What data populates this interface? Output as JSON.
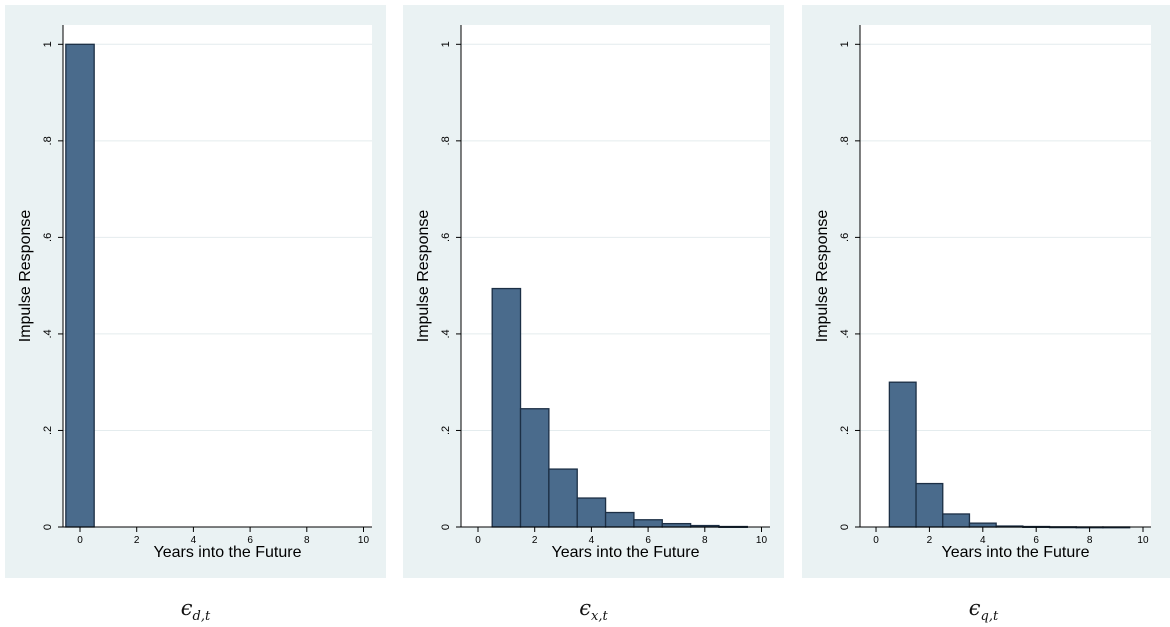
{
  "chart_data": [
    {
      "type": "bar",
      "ylabel": "Impulse Response",
      "xlabel": "Years into the Future",
      "xlim": [
        -0.6,
        10.3
      ],
      "ylim": [
        0,
        1.04
      ],
      "xticks": [
        0,
        2,
        4,
        6,
        8,
        10
      ],
      "yticks": [
        0,
        0.2,
        0.4,
        0.6,
        0.8,
        1
      ],
      "ytick_labels": [
        "0",
        ".2",
        ".4",
        ".6",
        ".8",
        "1"
      ],
      "grid": true,
      "x": [
        0,
        1,
        2,
        3,
        4,
        5,
        6,
        7,
        8,
        9
      ],
      "values": [
        1.0,
        0,
        0,
        0,
        0,
        0,
        0,
        0,
        0,
        0
      ],
      "caption_base": "ϵ",
      "caption_sub": "d,t"
    },
    {
      "type": "bar",
      "ylabel": "Impulse Response",
      "xlabel": "Years into the Future",
      "xlim": [
        -0.6,
        10.3
      ],
      "ylim": [
        0,
        1.04
      ],
      "xticks": [
        0,
        2,
        4,
        6,
        8,
        10
      ],
      "yticks": [
        0,
        0.2,
        0.4,
        0.6,
        0.8,
        1
      ],
      "ytick_labels": [
        "0",
        ".2",
        ".4",
        ".6",
        ".8",
        "1"
      ],
      "grid": true,
      "x": [
        0,
        1,
        2,
        3,
        4,
        5,
        6,
        7,
        8,
        9
      ],
      "values": [
        0,
        0.494,
        0.245,
        0.12,
        0.06,
        0.03,
        0.015,
        0.007,
        0.003,
        0.001
      ],
      "caption_base": "ϵ",
      "caption_sub": "x,t"
    },
    {
      "type": "bar",
      "ylabel": "Impulse Response",
      "xlabel": "Years into the Future",
      "xlim": [
        -0.6,
        10.3
      ],
      "ylim": [
        0,
        1.04
      ],
      "xticks": [
        0,
        2,
        4,
        6,
        8,
        10
      ],
      "yticks": [
        0,
        0.2,
        0.4,
        0.6,
        0.8,
        1
      ],
      "ytick_labels": [
        "0",
        ".2",
        ".4",
        ".6",
        ".8",
        "1"
      ],
      "grid": true,
      "x": [
        0,
        1,
        2,
        3,
        4,
        5,
        6,
        7,
        8,
        9
      ],
      "values": [
        0,
        0.3,
        0.09,
        0.027,
        0.008,
        0.002,
        0.001,
        0.0004,
        0.0001,
        0.0001
      ],
      "caption_base": "ϵ",
      "caption_sub": "q,t"
    }
  ],
  "colors": {
    "bar_fill": "#4a6b8c",
    "bar_stroke": "#1c2f45",
    "panel_bg": "#eaf2f3",
    "plot_bg": "#ffffff",
    "grid": "#e4ecee"
  }
}
